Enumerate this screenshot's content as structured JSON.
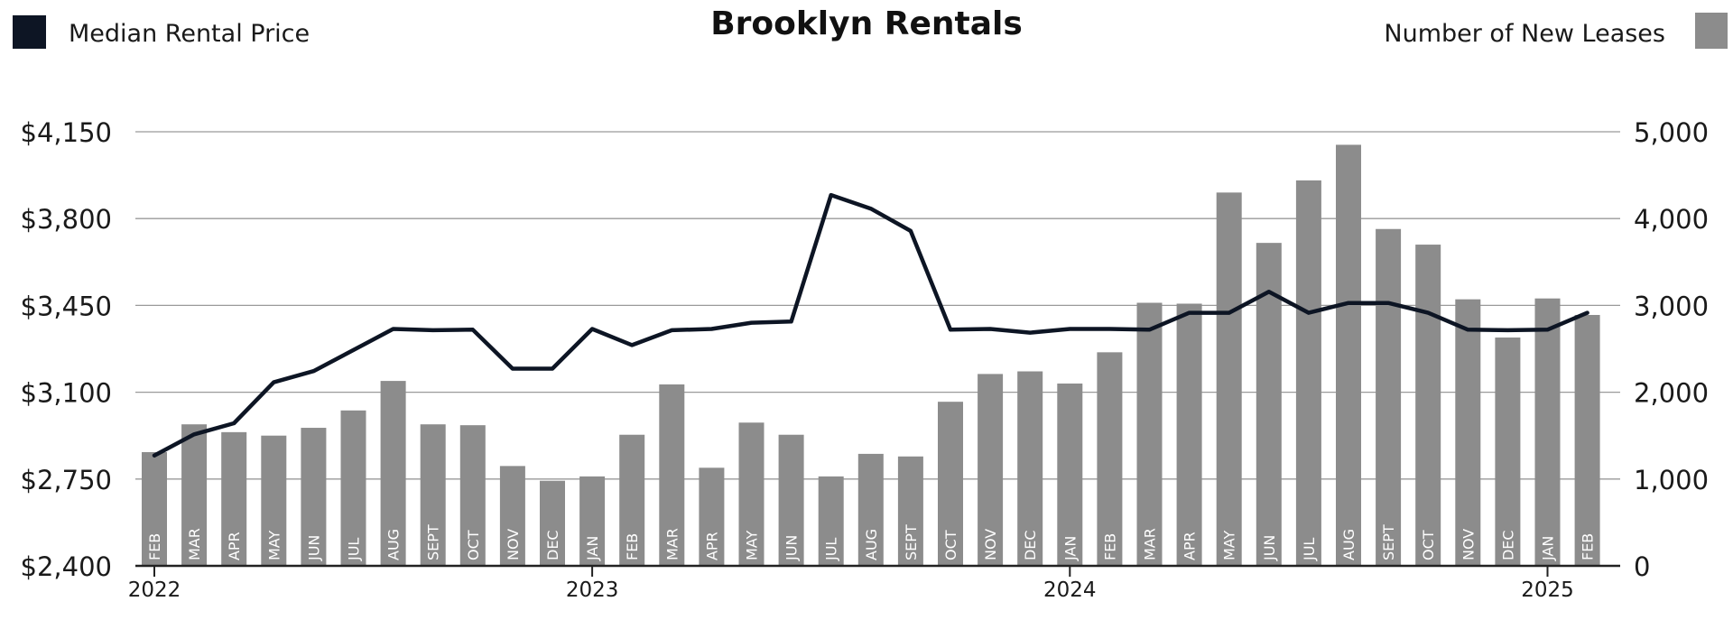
{
  "chart_data": {
    "type": "bar",
    "title": "Brooklyn Rentals",
    "categories": [
      "FEB",
      "MAR",
      "APR",
      "MAY",
      "JUN",
      "JUL",
      "AUG",
      "SEPT",
      "OCT",
      "NOV",
      "DEC",
      "JAN",
      "FEB",
      "MAR",
      "APR",
      "MAY",
      "JUN",
      "JUL",
      "AUG",
      "SEPT",
      "OCT",
      "NOV",
      "DEC",
      "JAN",
      "FEB",
      "MAR",
      "APR",
      "MAY",
      "JUN",
      "JUL",
      "AUG",
      "SEPT",
      "OCT",
      "NOV",
      "DEC",
      "JAN",
      "FEB"
    ],
    "years": [
      {
        "label": "2022",
        "index": 0
      },
      {
        "label": "2023",
        "index": 11
      },
      {
        "label": "2024",
        "index": 23
      },
      {
        "label": "2025",
        "index": 35
      }
    ],
    "series": [
      {
        "name": "Number of New Leases",
        "kind": "bar",
        "axis": "right",
        "color": "#8c8c8c",
        "values": [
          1310,
          1630,
          1540,
          1500,
          1590,
          1790,
          2130,
          1630,
          1620,
          1150,
          980,
          1030,
          1510,
          2090,
          1130,
          1650,
          1510,
          1030,
          1290,
          1260,
          1890,
          2210,
          2240,
          2100,
          2460,
          3030,
          3020,
          4300,
          3720,
          4440,
          4850,
          3880,
          3700,
          3070,
          2630,
          3080,
          2890
        ]
      },
      {
        "name": "Median Rental Price",
        "kind": "line",
        "axis": "left",
        "color": "#0d1524",
        "values": [
          2845,
          2930,
          2975,
          3140,
          3185,
          3270,
          3355,
          3350,
          3352,
          3195,
          3195,
          3355,
          3290,
          3350,
          3355,
          3380,
          3385,
          3895,
          3840,
          3750,
          3352,
          3355,
          3340,
          3355,
          3355,
          3352,
          3420,
          3420,
          3505,
          3420,
          3460,
          3460,
          3420,
          3352,
          3350,
          3352,
          3420
        ]
      }
    ],
    "y_left": {
      "ticks": [
        "$2,400",
        "$2,750",
        "$3,100",
        "$3,450",
        "$3,800",
        "$4,150"
      ],
      "min": 2400,
      "max": 4150
    },
    "y_right": {
      "ticks": [
        "0",
        "1,000",
        "2,000",
        "3,000",
        "4,000",
        "5,000"
      ],
      "min": 0,
      "max": 5000
    },
    "legend": {
      "left": "Median Rental Price",
      "right": "Number of New Leases"
    },
    "grid": true
  }
}
